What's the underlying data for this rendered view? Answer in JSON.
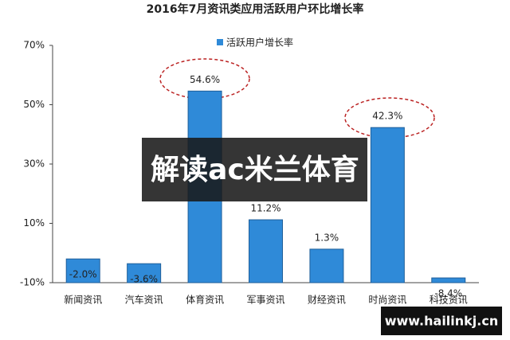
{
  "chart_data": {
    "type": "bar",
    "title": "2016年7月资讯类应用活跃用户环比增长率",
    "categories": [
      "新闻资讯",
      "汽车资讯",
      "体育资讯",
      "军事资讯",
      "财经资讯",
      "时尚资讯",
      "科技资讯"
    ],
    "series": [
      {
        "name": "活跃用户增长率",
        "color": "#2f8ad8",
        "values": [
          -2.0,
          -3.6,
          54.6,
          11.2,
          1.3,
          42.3,
          -8.4
        ],
        "value_labels": [
          "-2.0%",
          "-3.6%",
          "54.6%",
          "11.2%",
          "1.3%",
          "42.3%",
          "-8.4%"
        ]
      }
    ],
    "ylim": [
      -10,
      70
    ],
    "yticks": [
      {
        "value": -10,
        "label": "-10%"
      },
      {
        "value": 10,
        "label": "10%"
      },
      {
        "value": 30,
        "label": "30%"
      },
      {
        "value": 50,
        "label": "50%"
      },
      {
        "value": 70,
        "label": "70%"
      }
    ],
    "grid": false,
    "watermark": "解读ac米兰体育",
    "footer_watermark": "www.hailinkj.cn"
  }
}
